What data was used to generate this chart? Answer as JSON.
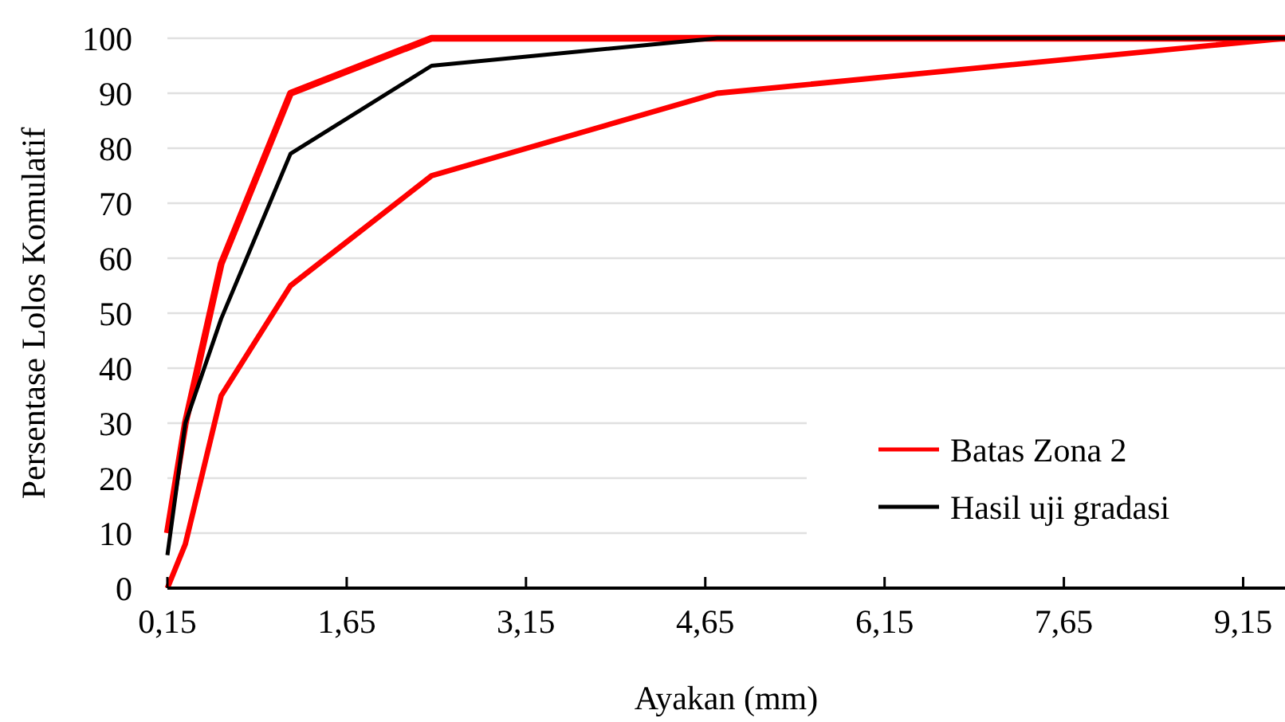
{
  "chart_data": {
    "type": "line",
    "xlabel": "Ayakan (mm)",
    "ylabel": "Persentase Lolos Komulatif",
    "xlim": [
      0.15,
      9.5
    ],
    "xticks": [
      {
        "value": 0.15,
        "label": "0,15"
      },
      {
        "value": 1.65,
        "label": "1,65"
      },
      {
        "value": 3.15,
        "label": "3,15"
      },
      {
        "value": 4.65,
        "label": "4,65"
      },
      {
        "value": 6.15,
        "label": "6,15"
      },
      {
        "value": 7.65,
        "label": "7,65"
      },
      {
        "value": 9.15,
        "label": "9,15"
      }
    ],
    "ylim": [
      0,
      100
    ],
    "yticks": [
      0,
      10,
      20,
      30,
      40,
      50,
      60,
      70,
      80,
      90,
      100
    ],
    "grid": "y",
    "legend": "bottom right",
    "marker": "none",
    "line_style": "solid",
    "x": [
      0.15,
      0.3,
      0.6,
      1.18,
      2.36,
      4.75,
      9.5
    ],
    "series": [
      {
        "name": "Batas Zona 2",
        "color": "#ff0000",
        "values": [
          10,
          30,
          59,
          90,
          100,
          100,
          100
        ]
      },
      {
        "color": "#ff0000",
        "values": [
          0,
          8,
          35,
          55,
          75,
          90,
          100
        ]
      },
      {
        "name": "Hasil uji gradasi",
        "color": "#000000",
        "values": [
          6,
          30,
          49,
          79,
          95,
          100,
          100
        ]
      }
    ]
  }
}
